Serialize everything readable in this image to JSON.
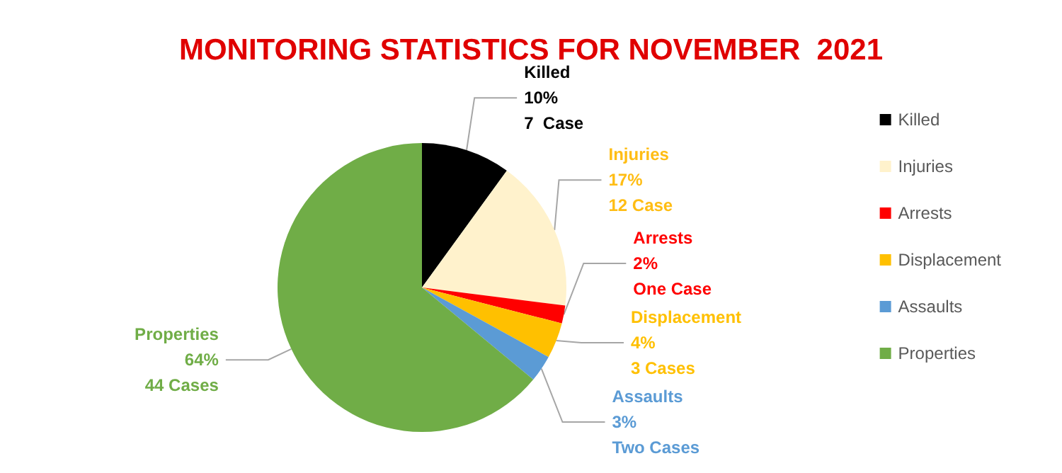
{
  "chart_data": {
    "type": "pie",
    "title": "MONITORING STATISTICS FOR NOVEMBER  2021",
    "categories": [
      "Killed",
      "Injuries",
      "Arrests",
      "Displacement",
      "Assaults",
      "Properties"
    ],
    "values": [
      10,
      17,
      2,
      4,
      3,
      64
    ],
    "colors": [
      "#000000",
      "#fff2cc",
      "#ff0000",
      "#ffc000",
      "#5b9bd5",
      "#70ad47"
    ],
    "value_labels": [
      "10%\n7  Case",
      "17%\n12 Case",
      "2%\nOne Case",
      "4%\n3 Cases",
      "3%\nTwo Cases",
      "64%\n44 Cases"
    ],
    "legend": "right"
  }
}
